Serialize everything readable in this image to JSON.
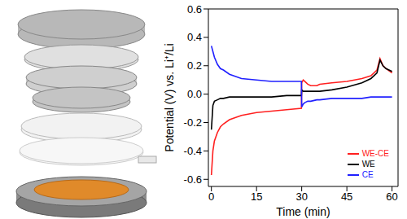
{
  "chart_data": {
    "type": "line",
    "x_label": "Time (min)",
    "y_label": "Potential (V) vs. Li⁺/Li",
    "x": [
      0,
      0.5,
      1,
      2,
      3,
      4,
      6,
      10,
      15,
      20,
      25,
      29.9,
      30,
      30.5,
      31,
      32,
      33,
      35,
      36,
      40,
      45,
      50,
      53,
      55,
      56,
      57,
      58,
      60
    ],
    "series": [
      {
        "name": "WE-CE",
        "color": "#ff2020",
        "values": [
          -0.57,
          -0.4,
          -0.33,
          -0.27,
          -0.23,
          -0.21,
          -0.18,
          -0.15,
          -0.13,
          -0.12,
          -0.11,
          -0.1,
          0.08,
          0.1,
          0.09,
          0.07,
          0.06,
          0.06,
          0.07,
          0.08,
          0.09,
          0.11,
          0.13,
          0.17,
          0.25,
          0.2,
          0.18,
          0.15
        ]
      },
      {
        "name": "WE",
        "color": "#000000",
        "values": [
          -0.25,
          -0.08,
          -0.05,
          -0.04,
          -0.03,
          -0.03,
          -0.02,
          -0.02,
          -0.02,
          -0.02,
          -0.01,
          -0.01,
          0.03,
          0.02,
          0.02,
          0.02,
          0.02,
          0.02,
          0.02,
          0.03,
          0.05,
          0.08,
          0.11,
          0.15,
          0.24,
          0.2,
          0.18,
          0.16
        ]
      },
      {
        "name": "CE",
        "color": "#2020ff",
        "values": [
          0.34,
          0.3,
          0.26,
          0.21,
          0.18,
          0.17,
          0.14,
          0.11,
          0.1,
          0.09,
          0.09,
          0.09,
          -0.09,
          -0.07,
          -0.06,
          -0.05,
          -0.05,
          -0.04,
          -0.04,
          -0.03,
          -0.03,
          -0.03,
          -0.02,
          -0.02,
          -0.02,
          -0.02,
          -0.02,
          -0.02
        ]
      }
    ],
    "xlim": [
      -1,
      62
    ],
    "xticks": [
      0,
      15,
      30,
      45,
      60
    ],
    "ylim": [
      -0.65,
      0.6
    ],
    "yticks": [
      -0.6,
      -0.4,
      -0.2,
      {
        "value": 0,
        "label": "0.0"
      },
      0.2,
      0.4,
      0.6
    ],
    "legend": "lower right",
    "grid": false
  }
}
